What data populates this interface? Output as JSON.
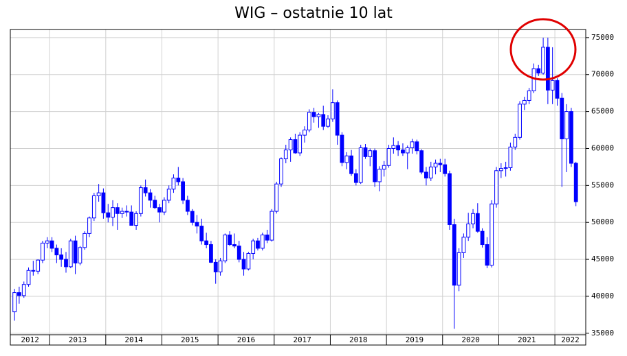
{
  "chart_data": {
    "type": "candlestick",
    "title": "WIG – ostatnie 10 lat",
    "color": "#0000ff",
    "up_color": "#ffffff",
    "down_color": "#0000ff",
    "grid": true,
    "xlim": [
      2012.3,
      2022.55
    ],
    "xticks": [
      2012,
      2013,
      2014,
      2015,
      2016,
      2017,
      2018,
      2019,
      2020,
      2021,
      2022
    ],
    "ylim": [
      34800,
      76100
    ],
    "yticks": [
      35000,
      40000,
      45000,
      50000,
      55000,
      60000,
      65000,
      70000,
      75000
    ],
    "x": [
      2012.375,
      2012.458,
      2012.542,
      2012.625,
      2012.708,
      2012.792,
      2012.875,
      2012.958,
      2013.042,
      2013.125,
      2013.208,
      2013.292,
      2013.375,
      2013.458,
      2013.542,
      2013.625,
      2013.708,
      2013.792,
      2013.875,
      2013.958,
      2014.042,
      2014.125,
      2014.208,
      2014.292,
      2014.375,
      2014.458,
      2014.542,
      2014.625,
      2014.708,
      2014.792,
      2014.875,
      2014.958,
      2015.042,
      2015.125,
      2015.208,
      2015.292,
      2015.375,
      2015.458,
      2015.542,
      2015.625,
      2015.708,
      2015.792,
      2015.875,
      2015.958,
      2016.042,
      2016.125,
      2016.208,
      2016.292,
      2016.375,
      2016.458,
      2016.542,
      2016.625,
      2016.708,
      2016.792,
      2016.875,
      2016.958,
      2017.042,
      2017.125,
      2017.208,
      2017.292,
      2017.375,
      2017.458,
      2017.542,
      2017.625,
      2017.708,
      2017.792,
      2017.875,
      2017.958,
      2018.042,
      2018.125,
      2018.208,
      2018.292,
      2018.375,
      2018.458,
      2018.542,
      2018.625,
      2018.708,
      2018.792,
      2018.875,
      2018.958,
      2019.042,
      2019.125,
      2019.208,
      2019.292,
      2019.375,
      2019.458,
      2019.542,
      2019.625,
      2019.708,
      2019.792,
      2019.875,
      2019.958,
      2020.042,
      2020.125,
      2020.208,
      2020.292,
      2020.375,
      2020.458,
      2020.542,
      2020.625,
      2020.708,
      2020.792,
      2020.875,
      2020.958,
      2021.042,
      2021.125,
      2021.208,
      2021.292,
      2021.375,
      2021.458,
      2021.542,
      2021.625,
      2021.708,
      2021.792,
      2021.875,
      2021.958,
      2022.042,
      2022.125,
      2022.208,
      2022.292,
      2022.375
    ],
    "open": [
      37900,
      40500,
      40100,
      41600,
      43500,
      43400,
      44900,
      47200,
      47500,
      46500,
      45600,
      45000,
      44000,
      47500,
      44500,
      46600,
      48500,
      50600,
      53600,
      54000,
      51300,
      50700,
      52000,
      51200,
      51500,
      51400,
      49600,
      51200,
      54700,
      54000,
      53000,
      52000,
      51400,
      53000,
      54500,
      56000,
      55500,
      53000,
      51500,
      50000,
      49500,
      47500,
      47000,
      44600,
      43300,
      44800,
      48300,
      47000,
      46800,
      45000,
      43700,
      45800,
      47500,
      46500,
      48300,
      47600,
      51500,
      55200,
      58600,
      59800,
      61200,
      59400,
      61800,
      62500,
      64900,
      64300,
      64600,
      63000,
      64000,
      66200,
      61800,
      58100,
      59000,
      56600,
      55400,
      60100,
      58900,
      59700,
      55500,
      57200,
      57700,
      60000,
      60400,
      59800,
      59400,
      60100,
      60900,
      59700,
      56800,
      56000,
      57500,
      58000,
      57800,
      56600,
      49700,
      41500,
      45900,
      48000,
      49800,
      51200,
      48800,
      47000,
      44200,
      52500,
      57000,
      57300,
      57400,
      60200,
      61500,
      66000,
      66500,
      67800,
      70800,
      70200,
      73700,
      67900,
      69200,
      66800,
      61300,
      65000,
      58000
    ],
    "high": [
      41000,
      41300,
      42000,
      43900,
      44800,
      45000,
      47500,
      48000,
      48000,
      47000,
      46500,
      46000,
      47800,
      48200,
      46800,
      48800,
      50800,
      54000,
      55200,
      54600,
      52500,
      53000,
      52600,
      52000,
      52300,
      52300,
      51500,
      55000,
      55800,
      54500,
      53600,
      52500,
      53400,
      55000,
      56500,
      57500,
      56000,
      53600,
      51800,
      51000,
      50500,
      48600,
      47500,
      45000,
      45200,
      48500,
      48800,
      48500,
      47500,
      46000,
      46000,
      47800,
      47900,
      48600,
      49000,
      51800,
      55500,
      58800,
      60500,
      61500,
      62000,
      62200,
      63000,
      65300,
      65500,
      64800,
      65800,
      64500,
      68000,
      66500,
      62200,
      59500,
      59800,
      57200,
      60500,
      60600,
      60000,
      60000,
      57600,
      58300,
      60500,
      61500,
      61000,
      60700,
      60400,
      61300,
      61200,
      59900,
      57500,
      58200,
      58500,
      58600,
      58600,
      57000,
      50500,
      46500,
      48500,
      51300,
      51800,
      52600,
      49200,
      48000,
      53000,
      57500,
      58000,
      58200,
      60800,
      62000,
      66400,
      67000,
      68200,
      71500,
      71300,
      75000,
      75000,
      73700,
      69500,
      67500,
      66000,
      65500,
      58200
    ],
    "low": [
      36700,
      39000,
      39800,
      41300,
      42800,
      43000,
      44500,
      46500,
      46000,
      44500,
      44000,
      43200,
      43800,
      43000,
      44200,
      46300,
      48000,
      50200,
      52800,
      50500,
      50000,
      49500,
      49000,
      50600,
      50800,
      49600,
      49000,
      50800,
      53500,
      52000,
      51800,
      50000,
      51000,
      52600,
      54000,
      55000,
      52500,
      51000,
      49600,
      48500,
      47000,
      46500,
      44500,
      41700,
      42800,
      44500,
      46800,
      46500,
      44600,
      42800,
      43500,
      45000,
      46200,
      46200,
      47200,
      47400,
      51200,
      54800,
      58000,
      58200,
      59300,
      59000,
      60800,
      62200,
      63500,
      62800,
      62500,
      62800,
      63600,
      60500,
      57600,
      57200,
      56300,
      55000,
      55200,
      58600,
      57600,
      54800,
      54200,
      56200,
      57400,
      59300,
      59000,
      59000,
      57200,
      59300,
      59200,
      56500,
      55000,
      55600,
      56500,
      56800,
      56200,
      49000,
      35600,
      40700,
      45200,
      47500,
      49200,
      48600,
      46600,
      43800,
      43900,
      52000,
      56000,
      56200,
      57000,
      59800,
      61200,
      65200,
      66000,
      67500,
      69800,
      70000,
      66000,
      66000,
      65800,
      54800,
      56800,
      57500,
      52200
    ],
    "close": [
      40500,
      40100,
      41600,
      43500,
      43400,
      44900,
      47200,
      47500,
      46500,
      45600,
      45000,
      44000,
      47500,
      44500,
      46600,
      48500,
      50600,
      53600,
      54000,
      51300,
      50700,
      52000,
      51200,
      51500,
      51400,
      49600,
      51200,
      54700,
      54000,
      53000,
      52000,
      51400,
      53000,
      54500,
      56000,
      55500,
      53000,
      51500,
      50000,
      49500,
      47500,
      47000,
      44600,
      43300,
      44800,
      48300,
      47000,
      46800,
      45000,
      43700,
      45800,
      47500,
      46500,
      48300,
      47600,
      51500,
      55200,
      58600,
      59800,
      61200,
      59400,
      61800,
      62500,
      64900,
      64300,
      64600,
      63000,
      64000,
      66200,
      61800,
      58100,
      59000,
      56600,
      55400,
      60100,
      58900,
      59700,
      55500,
      57200,
      57700,
      60000,
      60400,
      59800,
      59400,
      60100,
      60900,
      59700,
      56800,
      56000,
      57500,
      58000,
      57800,
      56600,
      49700,
      41500,
      45900,
      48000,
      49800,
      51200,
      48800,
      47000,
      44200,
      52500,
      57000,
      57300,
      57400,
      60200,
      61500,
      66000,
      66500,
      67800,
      70800,
      70200,
      73700,
      67900,
      69200,
      66800,
      61300,
      65000,
      58000,
      52800
    ]
  }
}
